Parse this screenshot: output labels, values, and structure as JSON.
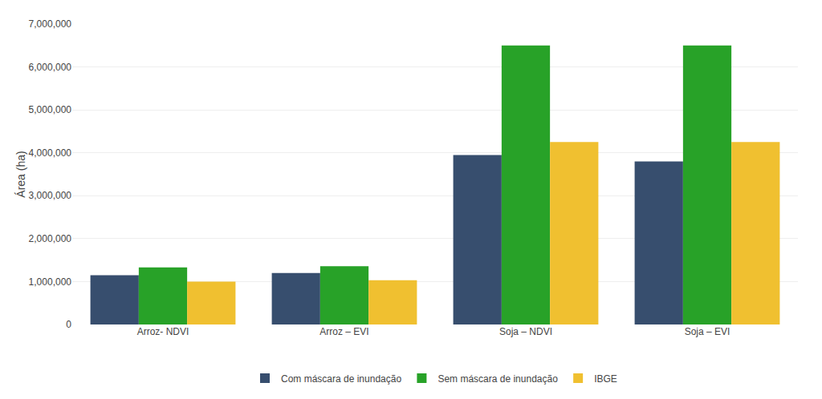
{
  "chart_data": {
    "type": "bar",
    "categories": [
      "Arroz- NDVI",
      "Arroz – EVI",
      "Soja – NDVI",
      "Soja – EVI"
    ],
    "series": [
      {
        "name": "Com máscara de inundação",
        "color": "#374E6E",
        "values": [
          1150000,
          1200000,
          3950000,
          3800000
        ]
      },
      {
        "name": "Sem máscara de inundação",
        "color": "#28A228",
        "values": [
          1330000,
          1360000,
          6500000,
          6500000
        ]
      },
      {
        "name": "IBGE",
        "color": "#F0C030",
        "values": [
          1000000,
          1030000,
          4250000,
          4250000
        ]
      }
    ],
    "ylabel": "Área (ha)",
    "ylim": [
      0,
      7000000
    ],
    "yticks": [
      0,
      {
        "value": 1000000,
        "label": "1,000,000"
      },
      {
        "value": 2000000,
        "label": "2,000,000"
      },
      {
        "value": 3000000,
        "label": "3,000,000"
      },
      {
        "value": 4000000,
        "label": "4,000,000"
      },
      {
        "value": 5000000,
        "label": "5,000,000"
      },
      {
        "value": 6000000,
        "label": "6,000,000"
      },
      {
        "value": 7000000,
        "label": "7,000,000"
      }
    ],
    "grid": true,
    "legend": "bottom"
  }
}
